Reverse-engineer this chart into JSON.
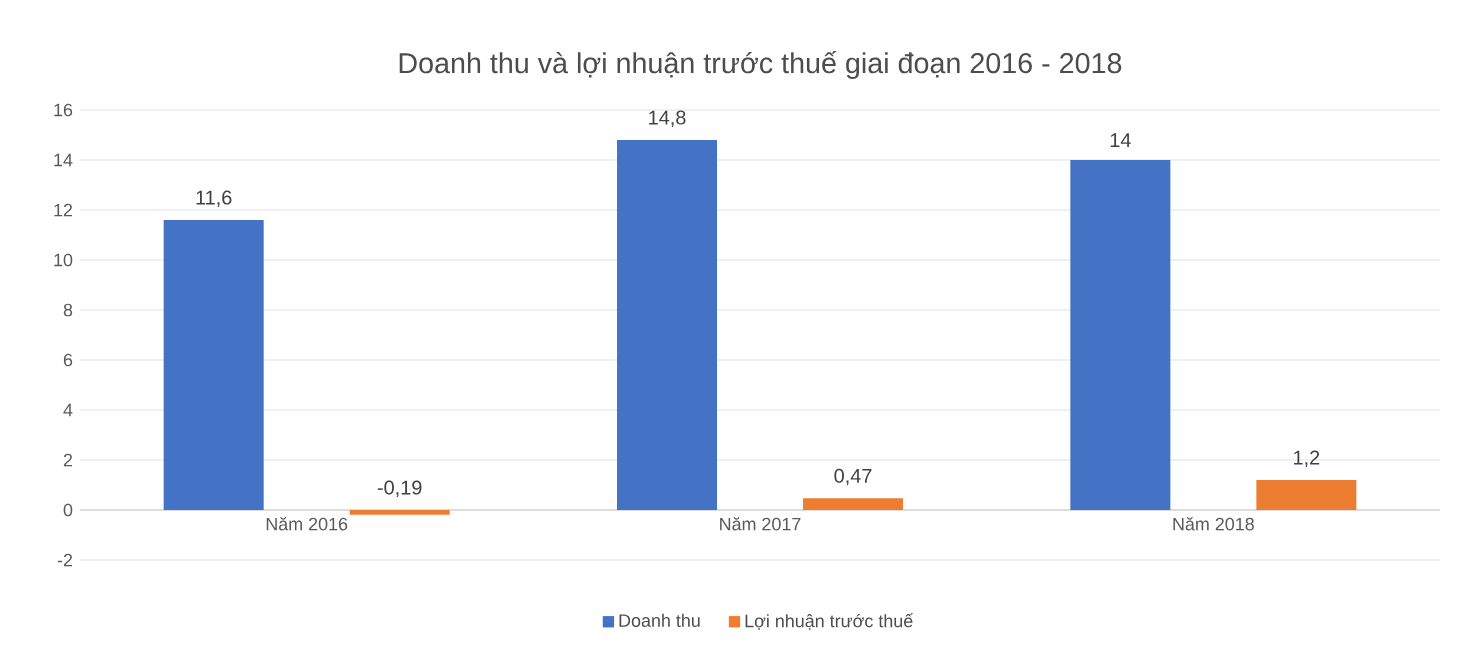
{
  "chart_data": {
    "type": "bar",
    "title": "Doanh thu và lợi nhuận trước thuế giai đoạn 2016 - 2018",
    "categories": [
      "Năm 2016",
      "Năm 2017",
      "Năm 2018"
    ],
    "series": [
      {
        "name": "Doanh thu",
        "color": "#4472c4",
        "values": [
          11.6,
          14.8,
          14
        ],
        "value_labels": [
          "11,6",
          "14,8",
          "14"
        ]
      },
      {
        "name": "Lợi nhuận trước thuế",
        "color": "#ed7d31",
        "values": [
          -0.19,
          0.47,
          1.2
        ],
        "value_labels": [
          "-0,19",
          "0,47",
          "1,2"
        ]
      }
    ],
    "ylim": [
      -2,
      16
    ],
    "yticks": [
      -2,
      0,
      2,
      4,
      6,
      8,
      10,
      12,
      14,
      16
    ],
    "grid": "y",
    "legend": "bottom"
  }
}
